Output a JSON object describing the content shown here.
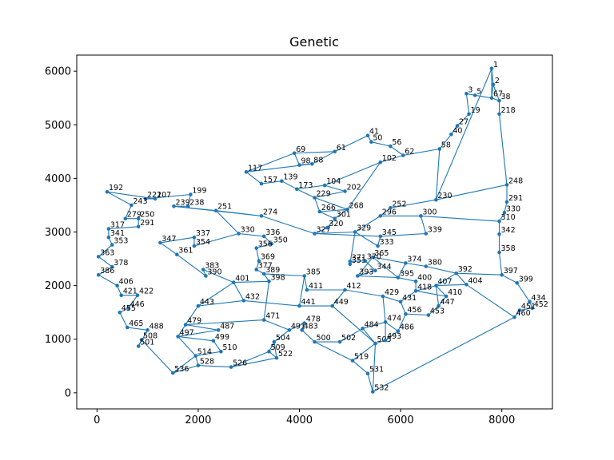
{
  "chart_data": {
    "type": "line",
    "title": "Genetic",
    "xlabel": "",
    "ylabel": "",
    "xlim": [
      -400,
      9000
    ],
    "ylim": [
      -300,
      6300
    ],
    "x_ticks": [
      0,
      2000,
      4000,
      6000,
      8000
    ],
    "y_ticks": [
      0,
      1000,
      2000,
      3000,
      4000,
      5000,
      6000
    ],
    "x_tick_labels": [
      "0",
      "2000",
      "4000",
      "6000",
      "8000"
    ],
    "y_tick_labels": [
      "0",
      "1000",
      "2000",
      "3000",
      "4000",
      "5000",
      "6000"
    ],
    "grid": false,
    "line_color": "#1f77b4",
    "points": [
      {
        "id": "1",
        "x": 7800,
        "y": 6050
      },
      {
        "id": "3",
        "x": 7300,
        "y": 5580
      },
      {
        "id": "2",
        "x": 7830,
        "y": 5750
      },
      {
        "id": "5",
        "x": 7470,
        "y": 5550
      },
      {
        "id": "67",
        "x": 7800,
        "y": 5500
      },
      {
        "id": "38",
        "x": 7950,
        "y": 5450
      },
      {
        "id": "19",
        "x": 7350,
        "y": 5200
      },
      {
        "id": "27",
        "x": 7120,
        "y": 4980
      },
      {
        "id": "40",
        "x": 7000,
        "y": 4820
      },
      {
        "id": "58",
        "x": 6770,
        "y": 4550
      },
      {
        "id": "62",
        "x": 6050,
        "y": 4430
      },
      {
        "id": "41",
        "x": 5350,
        "y": 4800
      },
      {
        "id": "50",
        "x": 5420,
        "y": 4680
      },
      {
        "id": "56",
        "x": 5800,
        "y": 4600
      },
      {
        "id": "61",
        "x": 4700,
        "y": 4500
      },
      {
        "id": "69",
        "x": 3900,
        "y": 4470
      },
      {
        "id": "98",
        "x": 4000,
        "y": 4250
      },
      {
        "id": "88",
        "x": 4250,
        "y": 4270
      },
      {
        "id": "117",
        "x": 2950,
        "y": 4120
      },
      {
        "id": "157",
        "x": 3250,
        "y": 3900
      },
      {
        "id": "139",
        "x": 3650,
        "y": 3950
      },
      {
        "id": "173",
        "x": 3950,
        "y": 3800
      },
      {
        "id": "192",
        "x": 200,
        "y": 3750
      },
      {
        "id": "221",
        "x": 960,
        "y": 3620
      },
      {
        "id": "207",
        "x": 1150,
        "y": 3620
      },
      {
        "id": "199",
        "x": 1850,
        "y": 3700
      },
      {
        "id": "239",
        "x": 1520,
        "y": 3480
      },
      {
        "id": "238",
        "x": 1800,
        "y": 3480
      },
      {
        "id": "251",
        "x": 2350,
        "y": 3400
      },
      {
        "id": "274",
        "x": 3250,
        "y": 3300
      },
      {
        "id": "243",
        "x": 680,
        "y": 3500
      },
      {
        "id": "279",
        "x": 560,
        "y": 3250
      },
      {
        "id": "250",
        "x": 820,
        "y": 3250
      },
      {
        "id": "291",
        "x": 820,
        "y": 3100
      },
      {
        "id": "317",
        "x": 230,
        "y": 3060
      },
      {
        "id": "341",
        "x": 230,
        "y": 2900
      },
      {
        "id": "353",
        "x": 300,
        "y": 2760
      },
      {
        "id": "363",
        "x": 30,
        "y": 2540
      },
      {
        "id": "378",
        "x": 300,
        "y": 2350
      },
      {
        "id": "386",
        "x": 30,
        "y": 2200
      },
      {
        "id": "347",
        "x": 1250,
        "y": 2800
      },
      {
        "id": "337",
        "x": 1920,
        "y": 2900
      },
      {
        "id": "354",
        "x": 1920,
        "y": 2740
      },
      {
        "id": "361",
        "x": 1580,
        "y": 2580
      },
      {
        "id": "330",
        "x": 2800,
        "y": 2970
      },
      {
        "id": "336",
        "x": 3300,
        "y": 2920
      },
      {
        "id": "350",
        "x": 3450,
        "y": 2780
      },
      {
        "id": "356",
        "x": 3150,
        "y": 2700
      },
      {
        "id": "369",
        "x": 3200,
        "y": 2460
      },
      {
        "id": "377",
        "x": 3150,
        "y": 2300
      },
      {
        "id": "383",
        "x": 2100,
        "y": 2300
      },
      {
        "id": "390",
        "x": 2150,
        "y": 2180
      },
      {
        "id": "401",
        "x": 2700,
        "y": 2060
      },
      {
        "id": "398",
        "x": 3400,
        "y": 2080
      },
      {
        "id": "389",
        "x": 3300,
        "y": 2220
      },
      {
        "id": "385",
        "x": 4100,
        "y": 2180
      },
      {
        "id": "406",
        "x": 400,
        "y": 2000
      },
      {
        "id": "421",
        "x": 480,
        "y": 1820
      },
      {
        "id": "422",
        "x": 800,
        "y": 1820
      },
      {
        "id": "443",
        "x": 2000,
        "y": 1620
      },
      {
        "id": "432",
        "x": 2900,
        "y": 1720
      },
      {
        "id": "441",
        "x": 4000,
        "y": 1620
      },
      {
        "id": "411",
        "x": 4150,
        "y": 1920
      },
      {
        "id": "412",
        "x": 4900,
        "y": 1920
      },
      {
        "id": "446",
        "x": 620,
        "y": 1580
      },
      {
        "id": "471",
        "x": 3300,
        "y": 1360
      },
      {
        "id": "479",
        "x": 1750,
        "y": 1270
      },
      {
        "id": "487",
        "x": 2400,
        "y": 1170
      },
      {
        "id": "497",
        "x": 1600,
        "y": 1050
      },
      {
        "id": "499",
        "x": 2300,
        "y": 970
      },
      {
        "id": "510",
        "x": 2450,
        "y": 770
      },
      {
        "id": "514",
        "x": 1950,
        "y": 690
      },
      {
        "id": "526",
        "x": 2650,
        "y": 480
      },
      {
        "id": "528",
        "x": 2000,
        "y": 510
      },
      {
        "id": "509",
        "x": 3400,
        "y": 770
      },
      {
        "id": "522",
        "x": 3550,
        "y": 650
      },
      {
        "id": "504",
        "x": 3500,
        "y": 950
      },
      {
        "id": "491",
        "x": 3800,
        "y": 1170
      },
      {
        "id": "478",
        "x": 4100,
        "y": 1300
      },
      {
        "id": "483",
        "x": 4050,
        "y": 1170
      },
      {
        "id": "500",
        "x": 4300,
        "y": 950
      },
      {
        "id": "502",
        "x": 4800,
        "y": 950
      },
      {
        "id": "505",
        "x": 5500,
        "y": 920
      },
      {
        "id": "519",
        "x": 5050,
        "y": 600
      },
      {
        "id": "531",
        "x": 5350,
        "y": 360
      },
      {
        "id": "532",
        "x": 5450,
        "y": 20
      },
      {
        "id": "508",
        "x": 880,
        "y": 990
      },
      {
        "id": "536",
        "x": 1500,
        "y": 370
      },
      {
        "id": "501",
        "x": 820,
        "y": 870
      },
      {
        "id": "488",
        "x": 1000,
        "y": 1170
      },
      {
        "id": "465",
        "x": 600,
        "y": 1220
      },
      {
        "id": "455",
        "x": 450,
        "y": 1500
      },
      {
        "id": "449",
        "x": 4650,
        "y": 1620
      },
      {
        "id": "429",
        "x": 5650,
        "y": 1800
      },
      {
        "id": "431",
        "x": 6000,
        "y": 1700
      },
      {
        "id": "418",
        "x": 6300,
        "y": 1900
      },
      {
        "id": "400",
        "x": 6300,
        "y": 2080
      },
      {
        "id": "395",
        "x": 5950,
        "y": 2150
      },
      {
        "id": "393",
        "x": 5150,
        "y": 2180
      },
      {
        "id": "374",
        "x": 6100,
        "y": 2420
      },
      {
        "id": "365",
        "x": 5450,
        "y": 2530
      },
      {
        "id": "380",
        "x": 6500,
        "y": 2360
      },
      {
        "id": "392",
        "x": 7100,
        "y": 2230
      },
      {
        "id": "404",
        "x": 7300,
        "y": 2020
      },
      {
        "id": "407",
        "x": 6700,
        "y": 2000
      },
      {
        "id": "410",
        "x": 6900,
        "y": 1800
      },
      {
        "id": "447",
        "x": 6750,
        "y": 1620
      },
      {
        "id": "453",
        "x": 6550,
        "y": 1450
      },
      {
        "id": "456",
        "x": 6100,
        "y": 1470
      },
      {
        "id": "474",
        "x": 5700,
        "y": 1320
      },
      {
        "id": "486",
        "x": 5950,
        "y": 1150
      },
      {
        "id": "493",
        "x": 5700,
        "y": 980
      },
      {
        "id": "484",
        "x": 5250,
        "y": 1200
      },
      {
        "id": "397",
        "x": 8000,
        "y": 2200
      },
      {
        "id": "399",
        "x": 8300,
        "y": 2050
      },
      {
        "id": "434",
        "x": 8550,
        "y": 1700
      },
      {
        "id": "452",
        "x": 8600,
        "y": 1580
      },
      {
        "id": "451",
        "x": 8350,
        "y": 1540
      },
      {
        "id": "460",
        "x": 8250,
        "y": 1410
      },
      {
        "id": "358",
        "x": 7950,
        "y": 2620
      },
      {
        "id": "342",
        "x": 7950,
        "y": 2960
      },
      {
        "id": "310",
        "x": 7950,
        "y": 3200
      },
      {
        "id": "330b",
        "x": 8050,
        "y": 3360
      },
      {
        "id": "291b",
        "x": 8100,
        "y": 3560
      },
      {
        "id": "248",
        "x": 8100,
        "y": 3880
      },
      {
        "id": "218",
        "x": 7950,
        "y": 5200
      },
      {
        "id": "327",
        "x": 4300,
        "y": 2970
      },
      {
        "id": "320",
        "x": 4550,
        "y": 3080
      },
      {
        "id": "301",
        "x": 4700,
        "y": 3250
      },
      {
        "id": "266",
        "x": 4400,
        "y": 3380
      },
      {
        "id": "268",
        "x": 4950,
        "y": 3420
      },
      {
        "id": "229",
        "x": 4300,
        "y": 3640
      },
      {
        "id": "202",
        "x": 4900,
        "y": 3760
      },
      {
        "id": "104",
        "x": 4500,
        "y": 3870
      },
      {
        "id": "102",
        "x": 5600,
        "y": 4300
      },
      {
        "id": "345",
        "x": 5600,
        "y": 2920
      },
      {
        "id": "339",
        "x": 6500,
        "y": 2970
      },
      {
        "id": "329",
        "x": 5100,
        "y": 3000
      },
      {
        "id": "333",
        "x": 5550,
        "y": 2740
      },
      {
        "id": "351",
        "x": 5000,
        "y": 2400
      },
      {
        "id": "344",
        "x": 5500,
        "y": 2280
      },
      {
        "id": "370",
        "x": 5300,
        "y": 2460
      },
      {
        "id": "371",
        "x": 5000,
        "y": 2450
      },
      {
        "id": "296",
        "x": 5600,
        "y": 3300
      },
      {
        "id": "300",
        "x": 6400,
        "y": 3300
      },
      {
        "id": "252",
        "x": 5800,
        "y": 3450
      },
      {
        "id": "230",
        "x": 6700,
        "y": 3600
      }
    ],
    "path_order": [
      "1",
      "2",
      "67",
      "38",
      "218",
      "248",
      "291b",
      "330b",
      "310",
      "342",
      "358",
      "397",
      "399",
      "434",
      "452",
      "451",
      "460",
      "404",
      "392",
      "380",
      "374",
      "365",
      "395",
      "400",
      "418",
      "410",
      "407",
      "447",
      "453",
      "456",
      "431",
      "429",
      "474",
      "486",
      "493",
      "505",
      "484",
      "502",
      "500",
      "519",
      "531",
      "532",
      "505",
      "449",
      "412",
      "411",
      "385",
      "441",
      "432",
      "443",
      "401",
      "383",
      "390",
      "361",
      "347",
      "337",
      "354",
      "330",
      "336",
      "350",
      "356",
      "369",
      "377",
      "389",
      "398",
      "471",
      "479",
      "487",
      "497",
      "499",
      "510",
      "514",
      "528",
      "526",
      "509",
      "522",
      "504",
      "491",
      "478",
      "483",
      "500",
      "502",
      "484",
      "474",
      "493",
      "486",
      "456",
      "453",
      "447",
      "410",
      "407",
      "404",
      "392",
      "397",
      "358",
      "342",
      "310",
      "300",
      "339",
      "345",
      "333",
      "329",
      "296",
      "252",
      "230",
      "58",
      "62",
      "56",
      "50",
      "41",
      "61",
      "69",
      "98",
      "88",
      "117",
      "157",
      "139",
      "173",
      "229",
      "202",
      "104",
      "102",
      "268",
      "266",
      "301",
      "320",
      "327",
      "329",
      "351",
      "371",
      "370",
      "344",
      "393",
      "395",
      "374",
      "380",
      "392",
      "407",
      "418",
      "431",
      "429",
      "412",
      "449",
      "441",
      "385",
      "389",
      "377",
      "369",
      "356",
      "350",
      "336",
      "330",
      "251",
      "274",
      "239",
      "238",
      "199",
      "221",
      "207",
      "192",
      "243",
      "279",
      "250",
      "291",
      "317",
      "341",
      "353",
      "363",
      "378",
      "386",
      "406",
      "421",
      "422",
      "446",
      "455",
      "465",
      "488",
      "501",
      "508",
      "536",
      "514",
      "497",
      "479",
      "443",
      "432",
      "401",
      "398",
      "471",
      "491",
      "504",
      "509",
      "522",
      "526",
      "528",
      "536",
      "508",
      "501",
      "488",
      "465",
      "455",
      "446",
      "422",
      "421",
      "406",
      "386",
      "378",
      "363",
      "353",
      "341",
      "317",
      "291",
      "250",
      "279",
      "243",
      "192",
      "207",
      "221",
      "199",
      "238",
      "239",
      "251",
      "274",
      "327",
      "320",
      "301",
      "266",
      "268",
      "229",
      "202",
      "104",
      "173",
      "139",
      "157",
      "117",
      "69",
      "98",
      "88",
      "61",
      "41",
      "50",
      "56",
      "62",
      "58",
      "40",
      "27",
      "19",
      "3",
      "5",
      "67",
      "1",
      "2",
      "38",
      "218",
      "248",
      "230",
      "252",
      "296",
      "300",
      "339",
      "345",
      "333",
      "329",
      "351",
      "371",
      "370",
      "344",
      "393",
      "365",
      "374",
      "395",
      "400",
      "418",
      "431",
      "429",
      "474",
      "486",
      "493",
      "505",
      "519",
      "531",
      "532",
      "460",
      "451",
      "452",
      "434",
      "399",
      "397",
      "358",
      "342",
      "310",
      "330b",
      "291b",
      "248",
      "218",
      "38",
      "67",
      "5",
      "3",
      "19",
      "27",
      "40",
      "58",
      "62",
      "102",
      "104",
      "202",
      "229",
      "266",
      "268",
      "301",
      "320",
      "327",
      "345",
      "339",
      "300",
      "296",
      "252",
      "230",
      "1"
    ]
  }
}
